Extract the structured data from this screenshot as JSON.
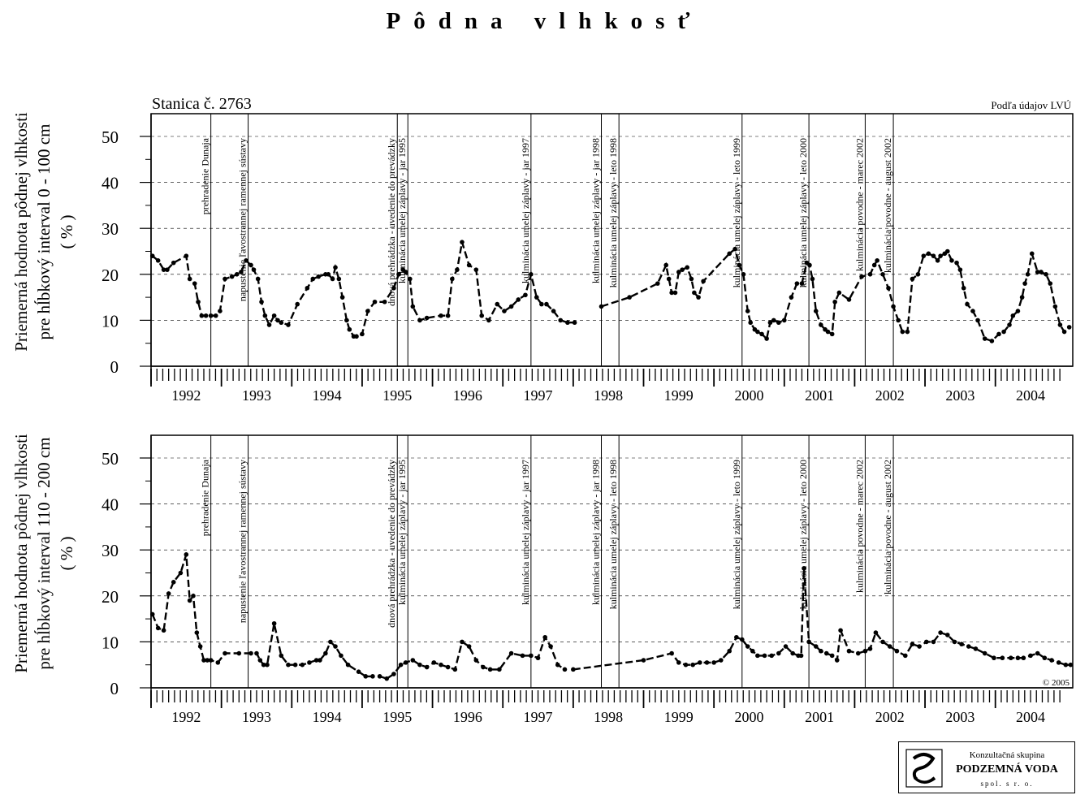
{
  "page": {
    "title": "Pôdna vlhkosť",
    "station": "Stanica č. 2763",
    "source": "Podľa údajov LVÚ",
    "copyright": "© 2005"
  },
  "logo": {
    "line1": "Konzultačná skupina",
    "line2": "PODZEMNÁ VODA",
    "line3": "spol. s r. o."
  },
  "chart_data": [
    {
      "type": "line",
      "ylabel": [
        "Priemerná hodnota pôdnej vlhkosti",
        "pre hĺbkový interval 0 - 100 cm",
        "( % )"
      ],
      "ylim": [
        0,
        55
      ],
      "yticks": [
        0,
        10,
        20,
        30,
        40,
        50
      ],
      "xlim": [
        1991.5,
        2004.6
      ],
      "xtick_labels": [
        "1992",
        "1993",
        "1994",
        "1995",
        "1996",
        "1997",
        "1998",
        "1999",
        "2000",
        "2001",
        "2002",
        "2003",
        "2004"
      ],
      "grid": "horizontal dashed",
      "line_style": "dashed with dot markers",
      "events": [
        {
          "x": 1992.35,
          "label": "prehradenie Dunaja"
        },
        {
          "x": 1992.88,
          "label": "napustenie ľavostrannej ramennej sústavy"
        },
        {
          "x": 1995.0,
          "label": "dnová prehrádzka - uvedenie do prevádzky"
        },
        {
          "x": 1995.15,
          "label": "kulminácia umelej záplavy - jar 1995"
        },
        {
          "x": 1996.9,
          "label": "kulminácia umelej záplavy - jar 1997"
        },
        {
          "x": 1997.9,
          "label": "kulminácia umelej záplavy - jar 1998"
        },
        {
          "x": 1998.15,
          "label": "kulminácia umelej záplavy - leto 1998"
        },
        {
          "x": 1999.9,
          "label": "kulminácia umelej záplavy - leto 1999"
        },
        {
          "x": 2000.85,
          "label": "kulminácia umelej záplavy - leto 2000"
        },
        {
          "x": 2001.65,
          "label": "kulminácia povodne - marec 2002"
        },
        {
          "x": 2002.05,
          "label": "kulminácia povodne - august 2002"
        }
      ],
      "series": [
        {
          "x": [
            1991.52,
            1991.6,
            1991.68,
            1991.73,
            1991.82,
            1992.0,
            1992.05,
            1992.12,
            1992.17,
            1992.22,
            1992.28,
            1992.35,
            1992.42,
            1992.48,
            1992.55,
            1992.65,
            1992.72,
            1992.78,
            1992.85,
            1992.92,
            1992.96,
            1993.02,
            1993.07,
            1993.12,
            1993.18,
            1993.25,
            1993.3,
            1993.35,
            1993.45,
            1993.58,
            1993.72,
            1993.8,
            1993.88,
            1993.98,
            1994.02,
            1994.08,
            1994.12,
            1994.17,
            1994.22,
            1994.28,
            1994.32,
            1994.38,
            1994.42,
            1994.5,
            1994.58,
            1994.68,
            1994.82,
            1994.95,
            1995.02,
            1995.08,
            1995.12,
            1995.18,
            1995.22,
            1995.32,
            1995.42,
            1995.62,
            1995.72,
            1995.78,
            1995.85,
            1995.92,
            1996.02,
            1996.12,
            1996.2,
            1996.3,
            1996.42,
            1996.52,
            1996.62,
            1996.72,
            1996.82,
            1996.9,
            1996.98,
            1997.05,
            1997.12,
            1997.22,
            1997.32,
            1997.42,
            1997.52
          ],
          "y": [
            24,
            23,
            21,
            21,
            22.5,
            24,
            19,
            18,
            14,
            11,
            11,
            11,
            11,
            12,
            19,
            19.5,
            20,
            20.5,
            23,
            22,
            21,
            19,
            14,
            11,
            9,
            11,
            10,
            9.5,
            9,
            13.5,
            17,
            19,
            19.5,
            20,
            20,
            19,
            21.5,
            19,
            15,
            10,
            8,
            6.5,
            6.5,
            7,
            12,
            14,
            14,
            17,
            20,
            21,
            20.5,
            19,
            13,
            10,
            10.5,
            11,
            11,
            19,
            21,
            27,
            22,
            21,
            11,
            10,
            13.5,
            12,
            13,
            14.5,
            15.5,
            20,
            15,
            13.5,
            13.5,
            12,
            10,
            9.5,
            9.5
          ]
        },
        {
          "x": [
            1997.9,
            1998.3,
            1998.7,
            1998.82,
            1998.86,
            1998.9,
            1998.95,
            1999.0,
            1999.05,
            1999.12,
            1999.18,
            1999.22,
            1999.28,
            1999.35,
            1999.72,
            1999.8,
            1999.86,
            1999.92,
            1999.98,
            2000.02,
            2000.08,
            2000.12,
            2000.18,
            2000.25,
            2000.3,
            2000.35,
            2000.42,
            2000.5,
            2000.6,
            2000.68,
            2000.75,
            2000.82,
            2000.86,
            2000.9,
            2000.95,
            2001.02,
            2001.08,
            2001.12,
            2001.18,
            2001.22,
            2001.28,
            2001.42,
            2001.6,
            2001.72,
            2001.78,
            2001.82,
            2001.9,
            2001.98,
            2002.05,
            2002.12,
            2002.18,
            2002.25,
            2002.32,
            2002.4,
            2002.48,
            2002.55,
            2002.62,
            2002.68,
            2002.72,
            2002.78,
            2002.82,
            2002.88,
            2002.95,
            2003.0,
            2003.05,
            2003.1,
            2003.18,
            2003.25,
            2003.35,
            2003.45,
            2003.55,
            2003.62,
            2003.7,
            2003.75,
            2003.82,
            2003.88,
            2003.92,
            2003.96,
            2004.02,
            2004.1,
            2004.15,
            2004.22,
            2004.28,
            2004.35,
            2004.42,
            2004.48,
            2004.55
          ],
          "y": [
            13,
            15,
            18,
            22,
            19,
            16,
            16,
            20.5,
            21,
            21.5,
            19,
            16,
            15,
            18.5,
            24.5,
            25.5,
            22,
            20,
            12,
            9.5,
            8,
            7.5,
            7,
            6,
            9.5,
            10,
            9.5,
            10,
            15,
            18,
            18,
            22.5,
            22,
            19,
            12,
            9,
            8,
            7.5,
            7,
            14,
            16,
            14.5,
            19.5,
            20,
            22,
            23,
            20,
            17,
            13,
            10,
            7.5,
            7.5,
            19,
            20,
            24,
            24.5,
            24,
            23,
            24,
            24.5,
            25,
            23,
            22.5,
            21,
            17,
            13.5,
            12,
            10,
            6,
            5.5,
            7,
            7.5,
            9,
            11,
            12,
            15,
            18,
            20,
            24.5,
            20.5,
            20.5,
            20,
            18,
            13,
            9,
            7.5,
            8.5
          ]
        }
      ]
    },
    {
      "type": "line",
      "ylabel": [
        "Priemerná hodnota pôdnej vlhkosti",
        "pre hĺbkový interval 110 - 200 cm",
        "( % )"
      ],
      "ylim": [
        0,
        55
      ],
      "yticks": [
        0,
        10,
        20,
        30,
        40,
        50
      ],
      "xlim": [
        1991.5,
        2004.6
      ],
      "xtick_labels": [
        "1992",
        "1993",
        "1994",
        "1995",
        "1996",
        "1997",
        "1998",
        "1999",
        "2000",
        "2001",
        "2002",
        "2003",
        "2004"
      ],
      "grid": "horizontal dashed",
      "line_style": "dashed with dot markers",
      "events": [
        {
          "x": 1992.35,
          "label": "prehradenie Dunaja"
        },
        {
          "x": 1992.88,
          "label": "napustenie ľavostrannej ramennej sústavy"
        },
        {
          "x": 1995.0,
          "label": "dnová prehrádzka - uvedenie do prevádzky"
        },
        {
          "x": 1995.15,
          "label": "kulminácia umelej záplavy - jar 1995"
        },
        {
          "x": 1996.9,
          "label": "kulminácia umelej záplavy - jar 1997"
        },
        {
          "x": 1997.9,
          "label": "kulminácia umelej záplavy - jar 1998"
        },
        {
          "x": 1998.15,
          "label": "kulminácia umelej záplavy - leto 1998"
        },
        {
          "x": 1999.9,
          "label": "kulminácia umelej záplavy - leto 1999"
        },
        {
          "x": 2000.85,
          "label": "kulminácia umelej záplavy - leto 2000"
        },
        {
          "x": 2001.65,
          "label": "kulminácia povodne - marec 2002"
        },
        {
          "x": 2002.05,
          "label": "kulminácia povodne - august 2002"
        }
      ],
      "series": [
        {
          "x": [
            1991.52,
            1991.6,
            1991.68,
            1991.75,
            1991.82,
            1991.92,
            1992.0,
            1992.05,
            1992.1,
            1992.15,
            1992.2,
            1992.25,
            1992.3,
            1992.35,
            1992.45,
            1992.55,
            1992.75,
            1992.92,
            1993.0,
            1993.05,
            1993.1,
            1993.15,
            1993.25,
            1993.35,
            1993.45,
            1993.55,
            1993.65,
            1993.75,
            1993.85,
            1993.9,
            1993.98,
            1994.05,
            1994.12,
            1994.2,
            1994.3,
            1994.45,
            1994.55,
            1994.65,
            1994.75,
            1994.85,
            1994.95,
            1995.05,
            1995.12,
            1995.22,
            1995.32,
            1995.42,
            1995.52,
            1995.62,
            1995.72,
            1995.82,
            1995.92,
            1996.02,
            1996.12,
            1996.22,
            1996.32,
            1996.45,
            1996.62,
            1996.78,
            1996.9,
            1997.0,
            1997.1,
            1997.18,
            1997.28,
            1997.38
          ],
          "y": [
            16,
            13,
            12.5,
            20.5,
            23,
            25,
            29,
            19,
            20,
            12,
            9,
            6,
            6,
            6,
            5.5,
            7.5,
            7.5,
            7.5,
            7.5,
            6,
            5,
            5,
            14,
            7,
            5,
            5,
            5,
            5.5,
            6,
            6,
            7.5,
            10,
            9,
            7,
            5,
            3.5,
            2.5,
            2.5,
            2.5,
            2,
            3,
            5,
            5.5,
            6,
            5,
            4.5,
            5.5,
            5,
            4.5,
            4,
            10,
            9,
            6,
            4.5,
            4,
            4,
            7.5,
            7,
            7,
            6.5,
            11,
            9,
            5,
            4
          ]
        },
        {
          "x": [
            1997.5,
            1998.5,
            1998.9,
            1999.0,
            1999.1,
            1999.2,
            1999.3,
            1999.4,
            1999.5,
            1999.6,
            1999.72,
            1999.82,
            1999.9,
            1999.98,
            2000.05,
            2000.12,
            2000.22,
            2000.32,
            2000.42,
            2000.52,
            2000.62,
            2000.7,
            2000.74,
            2000.78,
            2000.85,
            2000.95,
            2001.02,
            2001.1,
            2001.18,
            2001.25,
            2001.3,
            2001.42,
            2001.55,
            2001.65,
            2001.72,
            2001.8,
            2001.9,
            2002.0,
            2002.1,
            2002.22,
            2002.32,
            2002.42,
            2002.52,
            2002.62,
            2002.72,
            2002.82,
            2002.92,
            2003.02,
            2003.12,
            2003.22,
            2003.35,
            2003.48,
            2003.6,
            2003.72,
            2003.82,
            2003.9,
            2004.0,
            2004.1,
            2004.2,
            2004.3,
            2004.4,
            2004.5,
            2004.57
          ],
          "y": [
            4,
            6,
            7.5,
            5.5,
            5,
            5,
            5.5,
            5.5,
            5.5,
            6,
            8,
            11,
            10.5,
            9,
            8,
            7,
            7,
            7,
            7.5,
            9,
            7.5,
            7,
            7,
            26,
            10,
            9,
            8,
            7.5,
            7,
            6,
            12.5,
            8,
            7.5,
            8,
            8.5,
            12,
            10,
            9,
            8,
            7,
            9.5,
            9,
            10,
            10,
            12,
            11.5,
            10,
            9.5,
            9,
            8.5,
            7.5,
            6.5,
            6.5,
            6.5,
            6.5,
            6.5,
            7,
            7.5,
            6.5,
            6,
            5.5,
            5,
            5
          ]
        }
      ]
    }
  ]
}
